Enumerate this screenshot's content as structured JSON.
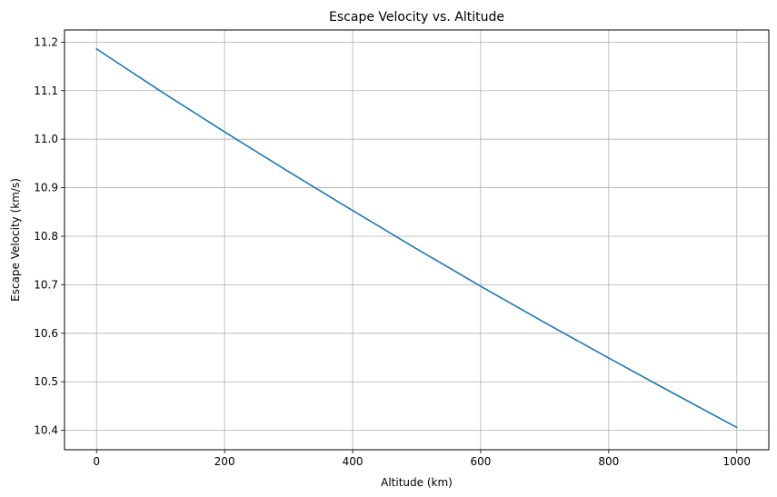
{
  "chart_data": {
    "type": "line",
    "title": "Escape Velocity vs. Altitude",
    "xlabel": "Altitude (km)",
    "ylabel": "Escape Velocity (km/s)",
    "xlim": [
      -50,
      1050
    ],
    "ylim": [
      10.36,
      11.225
    ],
    "x_ticks": [
      0,
      200,
      400,
      600,
      800,
      1000
    ],
    "y_ticks": [
      10.4,
      10.5,
      10.6,
      10.7,
      10.8,
      10.9,
      11.0,
      11.1,
      11.2
    ],
    "x_tick_labels": [
      "0",
      "200",
      "400",
      "600",
      "800",
      "1000"
    ],
    "y_tick_labels": [
      "10.4",
      "10.5",
      "10.6",
      "10.7",
      "10.8",
      "10.9",
      "11.0",
      "11.1",
      "11.2"
    ],
    "grid": true,
    "series": [
      {
        "color": "#1f77b4",
        "x": [
          0,
          100,
          200,
          300,
          400,
          500,
          600,
          700,
          800,
          900,
          1000
        ],
        "y": [
          11.186,
          11.099,
          11.015,
          10.933,
          10.853,
          10.774,
          10.697,
          10.622,
          10.549,
          10.477,
          10.406
        ]
      }
    ]
  }
}
